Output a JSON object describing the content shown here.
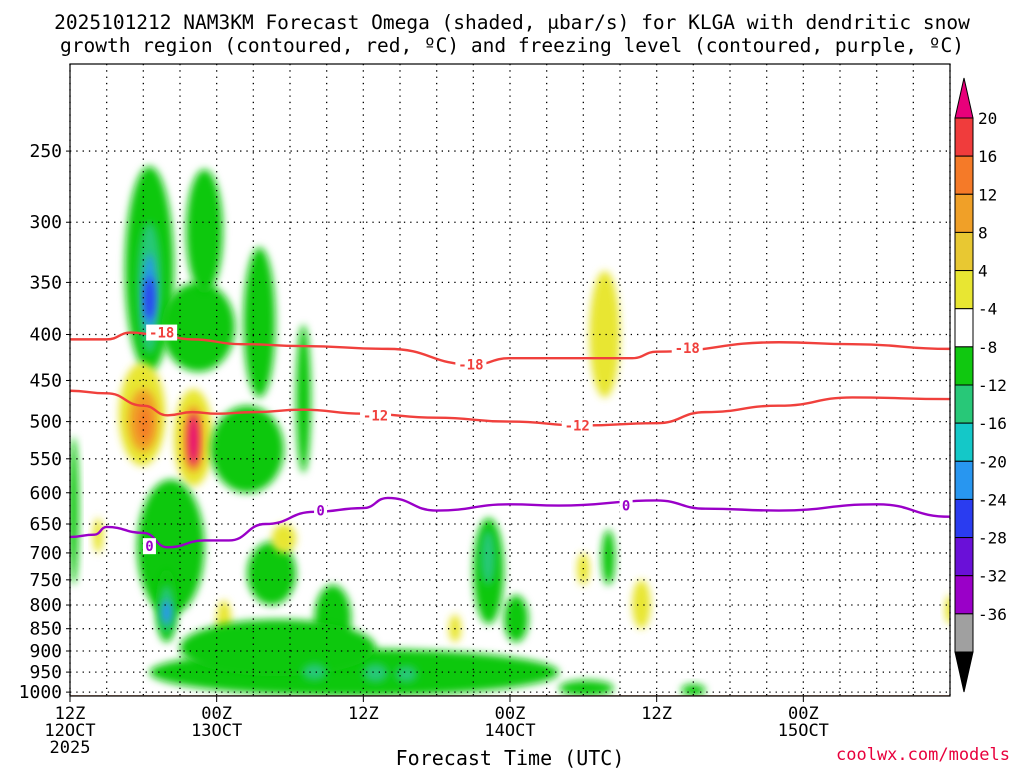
{
  "chart_data": {
    "type": "heatmap",
    "title_line1": "2025101212 NAM3KM Forecast Omega (shaded, μbar/s) for KLGA with dendritic snow",
    "title_line2": "growth region (contoured, red, ºC) and freezing level (contoured, purple, ºC)",
    "xlabel": "Forecast Time (UTC)",
    "credit": "coolwx.com/models",
    "x_range_hours": [
      0,
      72
    ],
    "y_range_hpa": [
      1010,
      200
    ],
    "y_ticks": [
      "250",
      "300",
      "350",
      "400",
      "450",
      "500",
      "550",
      "600",
      "650",
      "700",
      "750",
      "800",
      "850",
      "900",
      "950",
      "1000"
    ],
    "x_ticks": [
      {
        "hour": 0,
        "l1": "12Z",
        "l2": "12OCT",
        "l3": "2025"
      },
      {
        "hour": 12,
        "l1": "00Z",
        "l2": "13OCT",
        "l3": ""
      },
      {
        "hour": 24,
        "l1": "12Z",
        "l2": "",
        "l3": ""
      },
      {
        "hour": 36,
        "l1": "00Z",
        "l2": "14OCT",
        "l3": ""
      },
      {
        "hour": 48,
        "l1": "12Z",
        "l2": "",
        "l3": ""
      },
      {
        "hour": 60,
        "l1": "00Z",
        "l2": "15OCT",
        "l3": ""
      }
    ],
    "colorbar": {
      "labels": [
        "20",
        "16",
        "12",
        "8",
        "4",
        "-4",
        "-8",
        "-12",
        "-16",
        "-20",
        "-24",
        "-28",
        "-32",
        "-36"
      ],
      "bins": [
        {
          "color": "#e8007a"
        },
        {
          "color": "#f03c3c"
        },
        {
          "color": "#f57a28"
        },
        {
          "color": "#f0a028"
        },
        {
          "color": "#e8c832"
        },
        {
          "color": "#e8e632"
        },
        {
          "color": "#ffffff"
        },
        {
          "color": "#10c810"
        },
        {
          "color": "#28c878"
        },
        {
          "color": "#14c8c8"
        },
        {
          "color": "#2896f0"
        },
        {
          "color": "#2a3cf0"
        },
        {
          "color": "#6a10d8"
        },
        {
          "color": "#9a00c8"
        },
        {
          "color": "#a0a0a0"
        },
        {
          "color": "#000000"
        }
      ]
    },
    "series": [
      {
        "name": "-18",
        "color": "#f0403c",
        "points": [
          [
            0,
            405
          ],
          [
            3,
            405
          ],
          [
            5,
            398
          ],
          [
            7,
            400
          ],
          [
            10,
            405
          ],
          [
            14,
            410
          ],
          [
            19,
            412
          ],
          [
            26,
            415
          ],
          [
            33,
            432
          ],
          [
            36,
            425
          ],
          [
            46,
            425
          ],
          [
            48,
            418
          ],
          [
            58,
            408
          ],
          [
            64,
            410
          ],
          [
            72,
            415
          ]
        ]
      },
      {
        "name": "-12",
        "color": "#f0403c",
        "points": [
          [
            0,
            462
          ],
          [
            3,
            465
          ],
          [
            6,
            480
          ],
          [
            8,
            492
          ],
          [
            10,
            488
          ],
          [
            12,
            490
          ],
          [
            15,
            488
          ],
          [
            19,
            485
          ],
          [
            24,
            490
          ],
          [
            30,
            495
          ],
          [
            36,
            500
          ],
          [
            42,
            505
          ],
          [
            48,
            502
          ],
          [
            52,
            488
          ],
          [
            58,
            480
          ],
          [
            64,
            470
          ],
          [
            72,
            472
          ]
        ]
      },
      {
        "name": "0",
        "color": "#9a00c8",
        "points": [
          [
            0,
            672
          ],
          [
            2,
            668
          ],
          [
            3,
            655
          ],
          [
            6,
            665
          ],
          [
            8,
            690
          ],
          [
            11,
            678
          ],
          [
            13,
            678
          ],
          [
            16,
            650
          ],
          [
            20,
            630
          ],
          [
            24,
            624
          ],
          [
            26,
            608
          ],
          [
            30,
            628
          ],
          [
            36,
            618
          ],
          [
            40,
            620
          ],
          [
            48,
            612
          ],
          [
            52,
            625
          ],
          [
            58,
            628
          ],
          [
            66,
            618
          ],
          [
            72,
            638
          ]
        ]
      }
    ],
    "line_labels": [
      {
        "text": "-18",
        "hour": 7.5,
        "hpa": 398,
        "color": "#f0403c"
      },
      {
        "text": "-18",
        "hour": 32.8,
        "hpa": 432,
        "color": "#f0403c"
      },
      {
        "text": "-18",
        "hour": 50.5,
        "hpa": 414,
        "color": "#f0403c"
      },
      {
        "text": "-12",
        "hour": 25,
        "hpa": 492,
        "color": "#f0403c"
      },
      {
        "text": "-12",
        "hour": 41.5,
        "hpa": 505,
        "color": "#f0403c"
      },
      {
        "text": "0",
        "hour": 6.5,
        "hpa": 688,
        "color": "#9a00c8"
      },
      {
        "text": "0",
        "hour": 20.5,
        "hpa": 628,
        "color": "#9a00c8"
      },
      {
        "text": "0",
        "hour": 45.5,
        "hpa": 620,
        "color": "#9a00c8"
      }
    ],
    "shaded_regions": [
      {
        "color": "#10c810",
        "hour": [
          4.5,
          8.5
        ],
        "hpa": [
          260,
          440
        ]
      },
      {
        "color": "#28c878",
        "hour": [
          5.5,
          7.5
        ],
        "hpa": [
          300,
          420
        ]
      },
      {
        "color": "#2896f0",
        "hour": [
          6.0,
          7.0
        ],
        "hpa": [
          325,
          400
        ]
      },
      {
        "color": "#2a3cf0",
        "hour": [
          6.25,
          6.75
        ],
        "hpa": [
          345,
          385
        ]
      },
      {
        "color": "#10c810",
        "hour": [
          7.5,
          13.5
        ],
        "hpa": [
          350,
          440
        ]
      },
      {
        "color": "#10c810",
        "hour": [
          9.5,
          12.5
        ],
        "hpa": [
          262,
          360
        ]
      },
      {
        "color": "#10c810",
        "hour": [
          14.2,
          16.8
        ],
        "hpa": [
          320,
          470
        ]
      },
      {
        "color": "#10c810",
        "hour": [
          18.5,
          19.7
        ],
        "hpa": [
          390,
          570
        ]
      },
      {
        "color": "#e8e632",
        "hour": [
          4.0,
          7.8
        ],
        "hpa": [
          430,
          560
        ]
      },
      {
        "color": "#f0a028",
        "hour": [
          4.8,
          7.2
        ],
        "hpa": [
          460,
          540
        ]
      },
      {
        "color": "#f57a28",
        "hour": [
          5.6,
          6.6
        ],
        "hpa": [
          480,
          525
        ]
      },
      {
        "color": "#e8e632",
        "hour": [
          8.5,
          11.7
        ],
        "hpa": [
          460,
          590
        ]
      },
      {
        "color": "#f0a028",
        "hour": [
          9.2,
          11.0
        ],
        "hpa": [
          480,
          570
        ]
      },
      {
        "color": "#e8007a",
        "hour": [
          9.7,
          10.5
        ],
        "hpa": [
          490,
          560
        ]
      },
      {
        "color": "#10c810",
        "hour": [
          11.5,
          17.5
        ],
        "hpa": [
          480,
          600
        ]
      },
      {
        "color": "#e8e632",
        "hour": [
          42.5,
          45.0
        ],
        "hpa": [
          340,
          470
        ]
      },
      {
        "color": "#10c810",
        "hour": [
          0,
          0.6
        ],
        "hpa": [
          520,
          760
        ]
      },
      {
        "color": "#10c810",
        "hour": [
          5.5,
          11.0
        ],
        "hpa": [
          580,
          820
        ]
      },
      {
        "color": "#10c810",
        "hour": [
          7.0,
          8.8
        ],
        "hpa": [
          730,
          880
        ]
      },
      {
        "color": "#28c878",
        "hour": [
          7.3,
          8.5
        ],
        "hpa": [
          760,
          860
        ]
      },
      {
        "color": "#2896f0",
        "hour": [
          7.6,
          8.2
        ],
        "hpa": [
          790,
          840
        ]
      },
      {
        "color": "#e8e632",
        "hour": [
          12.0,
          13.2
        ],
        "hpa": [
          790,
          880
        ]
      },
      {
        "color": "#10c810",
        "hour": [
          14.5,
          18.5
        ],
        "hpa": [
          680,
          800
        ]
      },
      {
        "color": "#10c810",
        "hour": [
          20.0,
          23.0
        ],
        "hpa": [
          760,
          900
        ]
      },
      {
        "color": "#e8e632",
        "hour": [
          16.5,
          18.5
        ],
        "hpa": [
          650,
          700
        ]
      },
      {
        "color": "#10c810",
        "hour": [
          33.0,
          35.5
        ],
        "hpa": [
          640,
          840
        ]
      },
      {
        "color": "#28c878",
        "hour": [
          33.6,
          34.8
        ],
        "hpa": [
          660,
          760
        ]
      },
      {
        "color": "#10c810",
        "hour": [
          43.5,
          44.6
        ],
        "hpa": [
          660,
          760
        ]
      },
      {
        "color": "#e8e632",
        "hour": [
          41.5,
          42.5
        ],
        "hpa": [
          700,
          760
        ]
      },
      {
        "color": "#e8e632",
        "hour": [
          46.0,
          47.5
        ],
        "hpa": [
          750,
          850
        ]
      },
      {
        "color": "#e8e632",
        "hour": [
          31.0,
          32.0
        ],
        "hpa": [
          820,
          880
        ]
      },
      {
        "color": "#10c810",
        "hour": [
          35.5,
          37.5
        ],
        "hpa": [
          780,
          880
        ]
      },
      {
        "color": "#10c810",
        "hour": [
          6.5,
          40.0
        ],
        "hpa": [
          895,
          1010
        ]
      },
      {
        "color": "#10c810",
        "hour": [
          9.0,
          25.0
        ],
        "hpa": [
          830,
          960
        ]
      },
      {
        "color": "#28c878",
        "hour": [
          19.0,
          21.0
        ],
        "hpa": [
          930,
          970
        ]
      },
      {
        "color": "#28c878",
        "hour": [
          24.0,
          26.0
        ],
        "hpa": [
          930,
          975
        ]
      },
      {
        "color": "#28c878",
        "hour": [
          26.6,
          28.4
        ],
        "hpa": [
          935,
          975
        ]
      },
      {
        "color": "#10c810",
        "hour": [
          40.0,
          44.5
        ],
        "hpa": [
          970,
          1010
        ]
      },
      {
        "color": "#10c810",
        "hour": [
          50.0,
          52.0
        ],
        "hpa": [
          985,
          1005
        ]
      },
      {
        "color": "#e8e632",
        "hour": [
          2.0,
          2.6
        ],
        "hpa": [
          640,
          700
        ]
      },
      {
        "color": "#e8e632",
        "hour": [
          72.0,
          72.0
        ],
        "hpa": [
          780,
          840
        ]
      }
    ]
  }
}
